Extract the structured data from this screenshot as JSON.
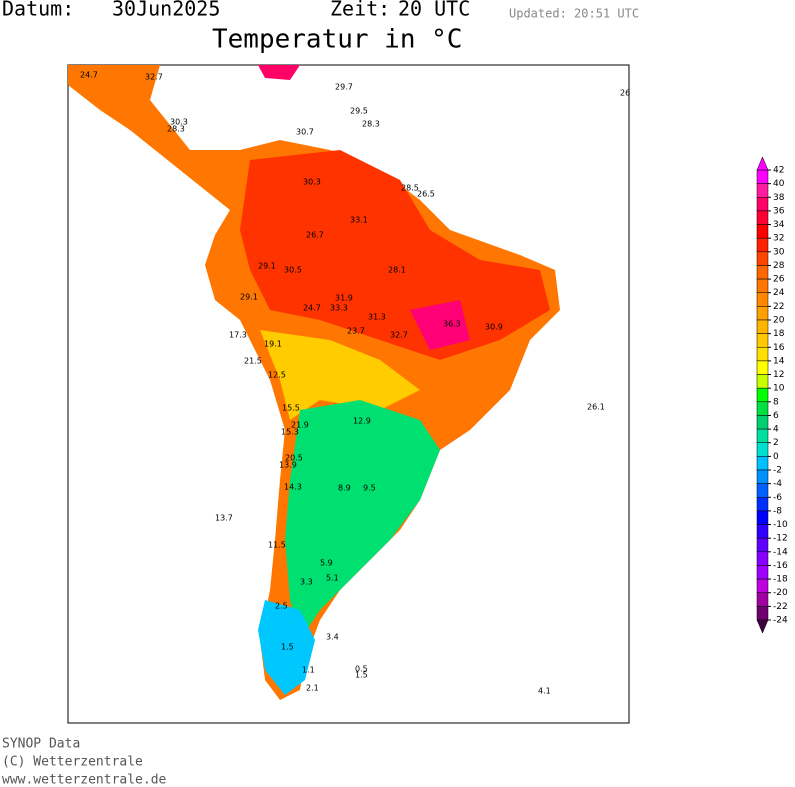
{
  "header": {
    "date_label": "Datum:",
    "date": "30Jun2025",
    "time_label": "Zeit:",
    "time": "20 UTC",
    "updated": "Updated: 20:51 UTC",
    "title": "Temperatur in °C"
  },
  "legend": {
    "ticks": [
      42,
      40,
      38,
      36,
      34,
      32,
      30,
      28,
      26,
      24,
      22,
      20,
      18,
      16,
      14,
      12,
      10,
      8,
      6,
      4,
      2,
      0,
      -2,
      -4,
      -6,
      -8,
      -10,
      -12,
      -14,
      -16,
      -18,
      -20,
      -22,
      -24
    ],
    "colors": [
      "#ff00ff",
      "#ff1aa0",
      "#ff0066",
      "#ff0033",
      "#ff0000",
      "#ff2200",
      "#ff4400",
      "#ff6600",
      "#ff7700",
      "#ff8800",
      "#ffa000",
      "#ffb400",
      "#ffc800",
      "#ffe000",
      "#ffff00",
      "#c8ff00",
      "#00ff00",
      "#00e040",
      "#00d070",
      "#00e0a0",
      "#00e0d0",
      "#00c0ff",
      "#0090ff",
      "#0060ff",
      "#0030ff",
      "#0000ff",
      "#3000ff",
      "#6000ff",
      "#8800ff",
      "#a000ff",
      "#c000e0",
      "#a000a0",
      "#700070"
    ]
  },
  "stations": [
    "24.7",
    "32.7",
    "29.7",
    "26",
    "29.5",
    "28.3",
    "30.3",
    "28.3",
    "30.7",
    "30.3",
    "28.5",
    "26.5",
    "33.1",
    "26.7",
    "29.1",
    "30.5",
    "31.9",
    "28.1",
    "29.1",
    "24.7",
    "33.3",
    "31.3",
    "23.7",
    "17.3",
    "19.1",
    "21.5",
    "32.7",
    "36.3",
    "30.9",
    "12.5",
    "15.5",
    "21.9",
    "15.3",
    "12.9",
    "26.1",
    "20.5",
    "13.9",
    "14.3",
    "13.7",
    "8.9",
    "9.5",
    "11.5",
    "5.9",
    "3.3",
    "5.1",
    "2.5",
    "1.5",
    "3.4",
    "1.1",
    "2.1",
    "0.5",
    "1.5",
    "4.1"
  ],
  "footer": [
    "SYNOP Data",
    "(C) Wetterzentrale",
    "www.wetterzentrale.de"
  ]
}
